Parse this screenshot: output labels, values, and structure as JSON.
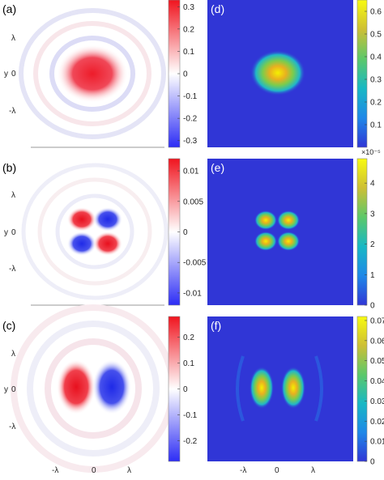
{
  "axes": {
    "y_label": "y",
    "y_ticks": [
      "λ",
      "0",
      "-λ"
    ],
    "x_ticks": [
      "-λ",
      "0",
      "λ"
    ]
  },
  "chart_data": [
    {
      "type": "heatmap",
      "panel_label": "(a)",
      "colormap": "blue-white-red",
      "clim": [
        -0.33,
        0.33
      ],
      "colorbar_ticks": [
        "0.3",
        "0.2",
        "0.1",
        "0",
        "-0.1",
        "-0.2",
        "-0.3"
      ],
      "colorbar_values": [
        0.3,
        0.2,
        0.1,
        0,
        -0.1,
        -0.2,
        -0.3
      ],
      "field": "central positive lobe with weak rings"
    },
    {
      "type": "heatmap",
      "panel_label": "(d)",
      "colormap": "parula",
      "clim": [
        0,
        0.65
      ],
      "colorbar_ticks": [
        "0.6",
        "0.5",
        "0.4",
        "0.3",
        "0.2",
        "0.1"
      ],
      "colorbar_values": [
        0.6,
        0.5,
        0.4,
        0.3,
        0.2,
        0.1
      ],
      "field": "single central intensity spot"
    },
    {
      "type": "heatmap",
      "panel_label": "(b)",
      "colormap": "blue-white-red",
      "clim": [
        -0.012,
        0.012
      ],
      "colorbar_ticks": [
        "0.01",
        "0.005",
        "0",
        "-0.005",
        "-0.01"
      ],
      "colorbar_values": [
        0.01,
        0.005,
        0,
        -0.005,
        -0.01
      ],
      "field": "four-lobe quadrupole, opposite signs in adjacent quadrants"
    },
    {
      "type": "heatmap",
      "panel_label": "(e)",
      "colormap": "parula",
      "clim": [
        0,
        4.8
      ],
      "colorbar_exponent": "×10⁻⁵",
      "colorbar_ticks": [
        "4",
        "3",
        "2",
        "1",
        "0"
      ],
      "colorbar_values": [
        4,
        3,
        2,
        1,
        0
      ],
      "field": "four small intensity spots"
    },
    {
      "type": "heatmap",
      "panel_label": "(c)",
      "colormap": "blue-white-red",
      "clim": [
        -0.28,
        0.28
      ],
      "colorbar_ticks": [
        "0.2",
        "0.1",
        "0",
        "-0.1",
        "-0.2"
      ],
      "colorbar_values": [
        0.2,
        0.1,
        0,
        -0.1,
        -0.2
      ],
      "field": "two lobes, left positive and right negative, with rings"
    },
    {
      "type": "heatmap",
      "panel_label": "(f)",
      "colormap": "parula",
      "clim": [
        0,
        0.072
      ],
      "colorbar_ticks": [
        "0.07",
        "0.06",
        "0.05",
        "0.04",
        "0.03",
        "0.02",
        "0.01",
        "0"
      ],
      "colorbar_values": [
        0.07,
        0.06,
        0.05,
        0.04,
        0.03,
        0.02,
        0.01,
        0
      ],
      "field": "two elongated intensity spots with side arcs"
    }
  ]
}
